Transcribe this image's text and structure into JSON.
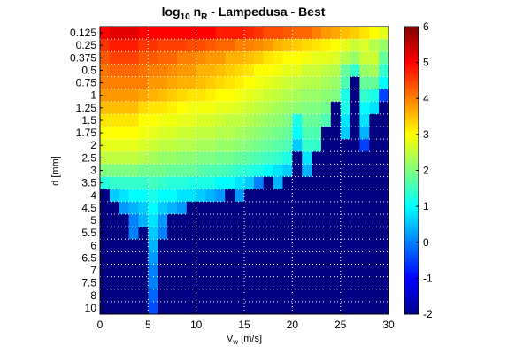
{
  "chart_data": {
    "type": "heatmap",
    "title": "log10 nR - Lampedusa - Best",
    "title_parts": {
      "base": "log",
      "base_sub": "10",
      "var": " n",
      "var_sub": "R",
      "rest": " - Lampedusa - Best"
    },
    "xlabel": "V",
    "xlabel_sub": "w",
    "xlabel_unit": " [m/s]",
    "ylabel": "d [mm]",
    "xlim": [
      0,
      30
    ],
    "x_ticks": [
      "0",
      "5",
      "10",
      "15",
      "20",
      "25",
      "30"
    ],
    "y_ticks": [
      "0.125",
      "0.25",
      "0.375",
      "0.5",
      "0.75",
      "1",
      "1.25",
      "1.5",
      "1.75",
      "2",
      "2.5",
      "3",
      "3.5",
      "4",
      "4.5",
      "5",
      "5.5",
      "6",
      "6.5",
      "7",
      "7.5",
      "8",
      "10"
    ],
    "colorbar": {
      "range": [
        -2,
        6
      ],
      "ticks": [
        "-2",
        "-1",
        "0",
        "1",
        "2",
        "3",
        "4",
        "5",
        "6"
      ],
      "colormap": "jet"
    },
    "grid": "dotted white",
    "columns": 30,
    "rows": [
      "0.125",
      "0.25",
      "0.375",
      "0.5",
      "0.75",
      "1",
      "1.25",
      "1.5",
      "1.75",
      "2",
      "2.5",
      "3",
      "3.5",
      "4",
      "4.5",
      "5",
      "5.5",
      "6",
      "6.5",
      "7",
      "7.5",
      "8",
      "10"
    ],
    "values_note": "log10 nR per wind-speed bin (columns 0..29) per drop size (rows)",
    "values": [
      [
        5.0,
        5.2,
        5.2,
        5.2,
        5.0,
        5.0,
        5.0,
        5.0,
        5.0,
        5.0,
        5.0,
        5.0,
        4.8,
        4.8,
        4.8,
        4.7,
        4.6,
        4.4,
        4.4,
        4.3,
        4.2,
        4.2,
        4.0,
        3.8,
        3.7,
        3.5,
        3.4,
        3.2,
        3.0,
        2.8
      ],
      [
        4.6,
        4.8,
        4.8,
        4.8,
        4.6,
        4.6,
        4.5,
        4.5,
        4.5,
        4.4,
        4.4,
        4.3,
        4.2,
        4.2,
        4.0,
        4.0,
        3.9,
        3.8,
        3.6,
        3.5,
        3.4,
        3.3,
        3.2,
        3.1,
        3.0,
        2.8,
        2.6,
        2.7,
        2.4,
        2.2
      ],
      [
        4.3,
        4.5,
        4.5,
        4.5,
        4.3,
        4.3,
        4.2,
        4.2,
        4.0,
        4.0,
        3.9,
        3.8,
        3.8,
        3.6,
        3.6,
        3.5,
        3.4,
        3.2,
        3.1,
        3.0,
        3.0,
        2.9,
        2.8,
        2.8,
        2.7,
        2.4,
        2.2,
        2.6,
        2.6,
        1.8
      ],
      [
        4.1,
        4.2,
        4.2,
        4.2,
        4.1,
        4.0,
        4.0,
        3.9,
        3.8,
        3.8,
        3.6,
        3.6,
        3.5,
        3.4,
        3.3,
        3.2,
        3.0,
        3.0,
        2.9,
        2.8,
        2.8,
        2.6,
        2.6,
        2.5,
        2.4,
        1.8,
        1.4,
        2.2,
        2.3,
        1.4
      ],
      [
        4.0,
        4.0,
        4.0,
        4.0,
        4.0,
        3.8,
        3.8,
        3.7,
        3.6,
        3.6,
        3.5,
        3.4,
        3.3,
        3.2,
        3.1,
        3.0,
        2.9,
        2.8,
        2.7,
        2.6,
        2.5,
        2.4,
        2.4,
        2.3,
        2.2,
        1.6,
        -2.0,
        1.8,
        1.8,
        1.0
      ],
      [
        3.8,
        3.8,
        3.8,
        3.8,
        3.7,
        3.6,
        3.5,
        3.4,
        3.3,
        3.2,
        3.2,
        3.1,
        3.0,
        3.0,
        2.9,
        2.8,
        2.7,
        2.6,
        2.5,
        2.4,
        2.3,
        2.2,
        2.2,
        2.1,
        2.0,
        1.2,
        -2.0,
        1.4,
        1.2,
        -0.5
      ],
      [
        3.5,
        3.5,
        3.5,
        3.5,
        3.3,
        3.2,
        3.2,
        3.1,
        3.0,
        2.9,
        2.9,
        2.9,
        2.8,
        2.8,
        2.7,
        2.6,
        2.5,
        2.4,
        2.3,
        2.2,
        2.1,
        2.0,
        2.0,
        1.9,
        -2.0,
        1.2,
        -2.0,
        1.0,
        0.8,
        -2.0
      ],
      [
        3.2,
        3.2,
        3.2,
        3.2,
        3.0,
        3.0,
        2.9,
        2.9,
        2.8,
        2.8,
        2.7,
        2.7,
        2.6,
        2.5,
        2.5,
        2.4,
        2.3,
        2.2,
        2.1,
        2.0,
        1.2,
        1.8,
        1.8,
        1.6,
        -2.0,
        0.8,
        -2.0,
        0.8,
        -2.0,
        -2.0
      ],
      [
        3.0,
        3.0,
        3.0,
        3.0,
        2.9,
        2.8,
        2.7,
        2.7,
        2.6,
        2.6,
        2.5,
        2.5,
        2.4,
        2.4,
        2.3,
        2.2,
        2.1,
        2.0,
        1.9,
        1.8,
        1.0,
        1.6,
        1.6,
        -2.0,
        -2.0,
        0.6,
        -2.0,
        0.4,
        -2.0,
        -2.0
      ],
      [
        2.8,
        2.8,
        2.8,
        2.8,
        2.7,
        2.6,
        2.5,
        2.5,
        2.4,
        2.4,
        2.3,
        2.3,
        2.2,
        2.2,
        2.1,
        2.0,
        1.9,
        1.8,
        1.7,
        1.6,
        0.6,
        1.4,
        1.4,
        -2.0,
        -2.0,
        -2.0,
        -2.0,
        -0.5,
        -2.0,
        -2.0
      ],
      [
        2.5,
        2.5,
        2.5,
        2.5,
        2.4,
        2.3,
        2.2,
        2.2,
        2.1,
        2.1,
        2.0,
        2.0,
        1.9,
        1.9,
        1.8,
        1.7,
        1.6,
        1.5,
        1.4,
        1.2,
        -2.0,
        0.8,
        -2.0,
        -2.0,
        -2.0,
        -2.0,
        -2.0,
        -2.0,
        -2.0,
        -2.0
      ],
      [
        2.0,
        2.0,
        2.0,
        2.0,
        1.9,
        1.9,
        1.9,
        1.8,
        1.8,
        1.8,
        1.7,
        1.6,
        1.6,
        1.5,
        1.4,
        1.3,
        1.2,
        1.0,
        0.8,
        0.6,
        -2.0,
        0.4,
        -2.0,
        -2.0,
        -2.0,
        -2.0,
        -2.0,
        -2.0,
        -2.0,
        -2.0
      ],
      [
        1.3,
        1.4,
        1.4,
        1.4,
        1.4,
        1.5,
        1.4,
        1.3,
        1.3,
        1.2,
        1.2,
        1.2,
        1.0,
        1.0,
        0.8,
        0.6,
        0.0,
        -2.0,
        0.4,
        -2.0,
        -2.0,
        -2.0,
        -2.0,
        -2.0,
        -2.0,
        -2.0,
        -2.0,
        -2.0,
        -2.0,
        -2.0
      ],
      [
        -2.0,
        0.6,
        0.8,
        1.0,
        1.0,
        1.2,
        1.0,
        1.0,
        0.8,
        0.8,
        0.6,
        0.4,
        0.2,
        -2.0,
        0.2,
        -2.0,
        -2.0,
        -2.0,
        -2.0,
        -2.0,
        -2.0,
        -2.0,
        -2.0,
        -2.0,
        -2.0,
        -2.0,
        -2.0,
        -2.0,
        -2.0,
        -2.0
      ],
      [
        -2.0,
        -2.0,
        0.2,
        0.4,
        0.6,
        1.0,
        0.6,
        0.4,
        0.2,
        -2.0,
        -2.0,
        -2.0,
        -2.0,
        -2.0,
        -2.0,
        -2.0,
        -2.0,
        -2.0,
        -2.0,
        -2.0,
        -2.0,
        -2.0,
        -2.0,
        -2.0,
        -2.0,
        -2.0,
        -2.0,
        -2.0,
        -2.0,
        -2.0
      ],
      [
        -2.0,
        -2.0,
        -2.0,
        0.0,
        0.4,
        0.8,
        0.2,
        -2.0,
        -2.0,
        -2.0,
        -2.0,
        -2.0,
        -2.0,
        -2.0,
        -2.0,
        -2.0,
        -2.0,
        -2.0,
        -2.0,
        -2.0,
        -2.0,
        -2.0,
        -2.0,
        -2.0,
        -2.0,
        -2.0,
        -2.0,
        -2.0,
        -2.0,
        -2.0
      ],
      [
        -2.0,
        -2.0,
        -2.0,
        0.0,
        -2.0,
        0.6,
        0.0,
        -2.0,
        -2.0,
        -2.0,
        -2.0,
        -2.0,
        -2.0,
        -2.0,
        -2.0,
        -2.0,
        -2.0,
        -2.0,
        -2.0,
        -2.0,
        -2.0,
        -2.0,
        -2.0,
        -2.0,
        -2.0,
        -2.0,
        -2.0,
        -2.0,
        -2.0,
        -2.0
      ],
      [
        -2.0,
        -2.0,
        -2.0,
        -2.0,
        -2.0,
        0.4,
        -2.0,
        -2.0,
        -2.0,
        -2.0,
        -2.0,
        -2.0,
        -2.0,
        -2.0,
        -2.0,
        -2.0,
        -2.0,
        -2.0,
        -2.0,
        -2.0,
        -2.0,
        -2.0,
        -2.0,
        -2.0,
        -2.0,
        -2.0,
        -2.0,
        -2.0,
        -2.0,
        -2.0
      ],
      [
        -2.0,
        -2.0,
        -2.0,
        -2.0,
        -2.0,
        0.2,
        -2.0,
        -2.0,
        -2.0,
        -2.0,
        -2.0,
        -2.0,
        -2.0,
        -2.0,
        -2.0,
        -2.0,
        -2.0,
        -2.0,
        -2.0,
        -2.0,
        -2.0,
        -2.0,
        -2.0,
        -2.0,
        -2.0,
        -2.0,
        -2.0,
        -2.0,
        -2.0,
        -2.0
      ],
      [
        -2.0,
        -2.0,
        -2.0,
        -2.0,
        -2.0,
        0.0,
        -2.0,
        -2.0,
        -2.0,
        -2.0,
        -2.0,
        -2.0,
        -2.0,
        -2.0,
        -2.0,
        -2.0,
        -2.0,
        -2.0,
        -2.0,
        -2.0,
        -2.0,
        -2.0,
        -2.0,
        -2.0,
        -2.0,
        -2.0,
        -2.0,
        -2.0,
        -2.0,
        -2.0
      ],
      [
        -2.0,
        -2.0,
        -2.0,
        -2.0,
        -2.0,
        0.0,
        -2.0,
        -2.0,
        -2.0,
        -2.0,
        -2.0,
        -2.0,
        -2.0,
        -2.0,
        -2.0,
        -2.0,
        -2.0,
        -2.0,
        -2.0,
        -2.0,
        -2.0,
        -2.0,
        -2.0,
        -2.0,
        -2.0,
        -2.0,
        -2.0,
        -2.0,
        -2.0,
        -2.0
      ],
      [
        -2.0,
        -2.0,
        -2.0,
        -2.0,
        -2.0,
        -0.2,
        -2.0,
        -2.0,
        -2.0,
        -2.0,
        -2.0,
        -2.0,
        -2.0,
        -2.0,
        -2.0,
        -2.0,
        -2.0,
        -2.0,
        -2.0,
        -2.0,
        -2.0,
        -2.0,
        -2.0,
        -2.0,
        -2.0,
        -2.0,
        -2.0,
        -2.0,
        -2.0,
        -2.0
      ],
      [
        -2.0,
        -2.0,
        -2.0,
        -2.0,
        -2.0,
        -0.4,
        -2.0,
        -2.0,
        -2.0,
        -2.0,
        -2.0,
        -2.0,
        -2.0,
        -2.0,
        -2.0,
        -2.0,
        -2.0,
        -2.0,
        -2.0,
        -2.0,
        -2.0,
        -2.0,
        -2.0,
        -2.0,
        -2.0,
        -2.0,
        -2.0,
        -2.0,
        -2.0,
        -2.0
      ]
    ]
  }
}
